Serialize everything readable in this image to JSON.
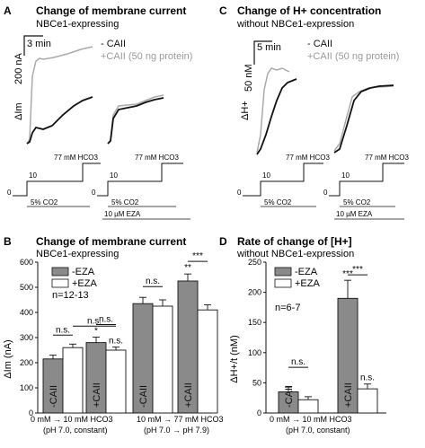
{
  "colors": {
    "minus_eza_fill": "#8a8a8a",
    "plus_eza_fill": "#ffffff",
    "plus_caii_trace": "#aaaaaa",
    "minus_caii_trace": "#111111"
  },
  "panels": {
    "a": {
      "letter": "A",
      "title": "Change of membrane current",
      "subtitle": "NBCe1-expressing",
      "time_scale": "3 min",
      "current_scale": "200 nA",
      "ylabel": "ΔIm",
      "legend": [
        "- CAII",
        "+CAII (50 ng protein)"
      ],
      "protocol_steps": [
        "0",
        "10"
      ],
      "protocol_77": "77 mM HCO3",
      "co2": "5% CO2",
      "eza": "10 µM EZA"
    },
    "c": {
      "letter": "C",
      "title": "Change of H+ concentration",
      "subtitle": "without NBCe1-expression",
      "time_scale": "5 min",
      "conc_scale": "50 nM",
      "ylabel": "ΔH+",
      "legend": [
        "- CAII",
        "+CAII (50 ng protein)"
      ],
      "protocol_steps": [
        "0",
        "10"
      ],
      "protocol_77": "77 mM HCO3",
      "co2": "5% CO2",
      "eza": "10 µM EZA"
    }
  },
  "chart_data": [
    {
      "panel": "B",
      "type": "bar",
      "title": "Change of membrane current",
      "subtitle": "NBCe1-expressing",
      "ylabel": "ΔIm (nA)",
      "ylim": [
        0,
        600
      ],
      "yticks": [
        0,
        100,
        200,
        300,
        400,
        500,
        600
      ],
      "n_label": "n=12-13",
      "series": [
        {
          "name": "-EZA"
        },
        {
          "name": "+EZA"
        }
      ],
      "bars": [
        {
          "label": "-CAII",
          "series": 0,
          "value": 215,
          "err": 15
        },
        {
          "label": "",
          "series": 1,
          "value": 260,
          "err": 14
        },
        {
          "label": "+CAII",
          "series": 0,
          "value": 280,
          "err": 22
        },
        {
          "label": "",
          "series": 1,
          "value": 250,
          "err": 12
        },
        {
          "label": "-CAII",
          "series": 0,
          "value": 435,
          "err": 25
        },
        {
          "label": "",
          "series": 1,
          "value": 425,
          "err": 25
        },
        {
          "label": "+CAII",
          "series": 0,
          "value": 525,
          "err": 28
        },
        {
          "label": "",
          "series": 1,
          "value": 410,
          "err": 20
        }
      ],
      "significance": [
        {
          "bars": [
            0,
            1
          ],
          "text": "n.s."
        },
        {
          "bars": [
            2,
            3
          ],
          "text": "n.s."
        },
        {
          "bars": [
            4,
            5
          ],
          "text": "n.s."
        },
        {
          "bars": [
            6,
            7
          ],
          "text": "***"
        },
        {
          "bars": [
            1,
            3
          ],
          "text": "n.s."
        }
      ],
      "bar_marks": [
        {
          "bar": 2,
          "text": "*"
        },
        {
          "bar": 3,
          "text": "n.s."
        },
        {
          "bar": 6,
          "text": "**"
        }
      ],
      "group_labels": [
        {
          "line1": "0 mM → 10 mM HCO3",
          "line2": "(pH 7.0, constant)"
        },
        {
          "line1": "10 mM → 77 mM HCO3",
          "line2": "(pH 7.0 → pH 7.9)"
        }
      ]
    },
    {
      "panel": "D",
      "type": "bar",
      "title": "Rate of change of [H+]",
      "subtitle": "without NBCe1-expression",
      "ylabel": "ΔH+/t (nM)",
      "ylim": [
        0,
        250
      ],
      "yticks": [
        0,
        50,
        100,
        150,
        200,
        250
      ],
      "n_label": "n=6-7",
      "series": [
        {
          "name": "-EZA"
        },
        {
          "name": "+EZA"
        }
      ],
      "bars": [
        {
          "label": "-CAII",
          "series": 0,
          "value": 35,
          "err": 8
        },
        {
          "label": "",
          "series": 1,
          "value": 22,
          "err": 5
        },
        {
          "label": "+CAII",
          "series": 0,
          "value": 190,
          "err": 30
        },
        {
          "label": "",
          "series": 1,
          "value": 40,
          "err": 8
        }
      ],
      "significance": [
        {
          "bars": [
            0,
            1
          ],
          "text": "n.s."
        },
        {
          "bars": [
            2,
            3
          ],
          "text": "***"
        }
      ],
      "bar_marks": [
        {
          "bar": 2,
          "text": "***"
        },
        {
          "bar": 3,
          "text": "n.s."
        }
      ],
      "group_labels": [
        {
          "line1": "0 mM → 10 mM HCO3",
          "line2": "(pH 7.0, constant)"
        }
      ]
    }
  ]
}
